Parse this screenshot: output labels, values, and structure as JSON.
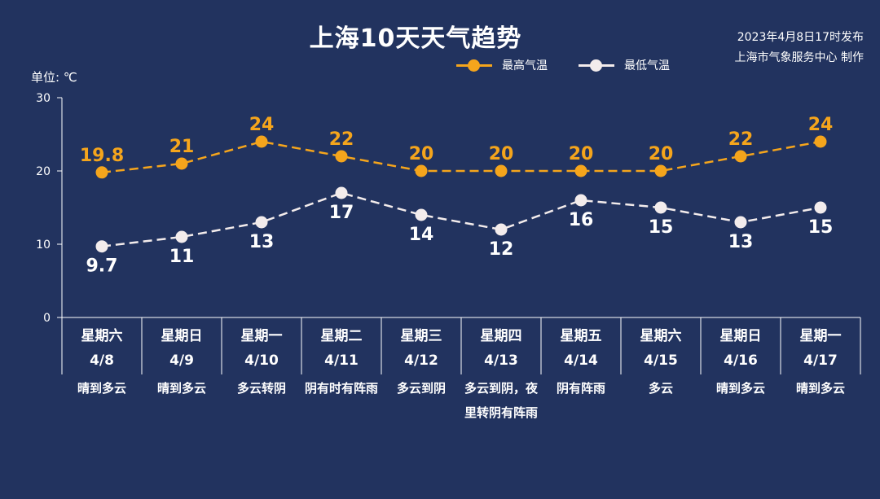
{
  "title": "上海10天天气趋势",
  "published": "2023年4月8日17时发布",
  "publisher": "上海市气象服务中心 制作",
  "unit": "单位: ℃",
  "colors": {
    "background": "#22335f",
    "high": "#f5a51c",
    "low": "#f3ecec"
  },
  "chart_data": {
    "type": "line",
    "title": "上海10天天气趋势",
    "ylabel": "单位: ℃",
    "ylim": [
      0,
      30
    ],
    "yticks": [
      0,
      10,
      20,
      30
    ],
    "legend_position": "top-right",
    "categories": [
      "4/8",
      "4/9",
      "4/10",
      "4/11",
      "4/12",
      "4/13",
      "4/14",
      "4/15",
      "4/16",
      "4/17"
    ],
    "series": [
      {
        "name": "最高气温",
        "values": [
          19.8,
          21,
          24,
          22,
          20,
          20,
          20,
          20,
          22,
          24
        ],
        "labels": [
          "19.8",
          "21",
          "24",
          "22",
          "20",
          "20",
          "20",
          "20",
          "22",
          "24"
        ]
      },
      {
        "name": "最低气温",
        "values": [
          9.7,
          11,
          13,
          17,
          14,
          12,
          16,
          15,
          13,
          15
        ],
        "labels": [
          "9.7",
          "11",
          "13",
          "17",
          "14",
          "12",
          "16",
          "15",
          "13",
          "15"
        ]
      }
    ]
  },
  "days": [
    {
      "weekday": "星期六",
      "date": "4/8",
      "condition": "晴到多云"
    },
    {
      "weekday": "星期日",
      "date": "4/9",
      "condition": "晴到多云"
    },
    {
      "weekday": "星期一",
      "date": "4/10",
      "condition": "多云转阴"
    },
    {
      "weekday": "星期二",
      "date": "4/11",
      "condition": "阴有时有阵雨"
    },
    {
      "weekday": "星期三",
      "date": "4/12",
      "condition": "多云到阴"
    },
    {
      "weekday": "星期四",
      "date": "4/13",
      "condition": "多云到阴，夜里转阴有阵雨"
    },
    {
      "weekday": "星期五",
      "date": "4/14",
      "condition": "阴有阵雨"
    },
    {
      "weekday": "星期六",
      "date": "4/15",
      "condition": "多云"
    },
    {
      "weekday": "星期日",
      "date": "4/16",
      "condition": "晴到多云"
    },
    {
      "weekday": "星期一",
      "date": "4/17",
      "condition": "晴到多云"
    }
  ]
}
